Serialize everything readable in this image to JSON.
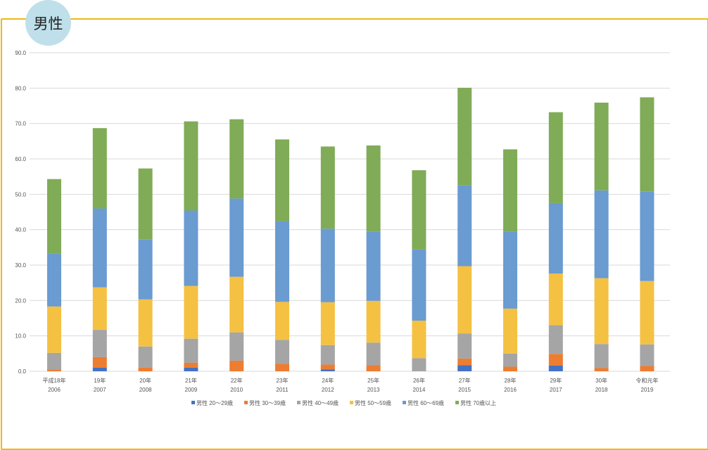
{
  "badge": {
    "label": "男性"
  },
  "chart_data": {
    "type": "bar",
    "stacked": true,
    "title": "",
    "xlabel": "",
    "ylabel": "",
    "ylim": [
      0,
      90
    ],
    "yticks": [
      "0.0",
      "10.0",
      "20.0",
      "30.0",
      "40.0",
      "50.0",
      "60.0",
      "70.0",
      "80.0",
      "90.0"
    ],
    "grid": true,
    "legend_position": "bottom",
    "categories": [
      {
        "era": "平成18年",
        "year": "2006"
      },
      {
        "era": "19年",
        "year": "2007"
      },
      {
        "era": "20年",
        "year": "2008"
      },
      {
        "era": "21年",
        "year": "2009"
      },
      {
        "era": "22年",
        "year": "2010"
      },
      {
        "era": "23年",
        "year": "2011"
      },
      {
        "era": "24年",
        "year": "2012"
      },
      {
        "era": "25年",
        "year": "2013"
      },
      {
        "era": "26年",
        "year": "2014"
      },
      {
        "era": "27年",
        "year": "2015"
      },
      {
        "era": "28年",
        "year": "2016"
      },
      {
        "era": "29年",
        "year": "2017"
      },
      {
        "era": "30年",
        "year": "2018"
      },
      {
        "era": "令和元年",
        "year": "2019"
      }
    ],
    "series": [
      {
        "name": "男性 20～29歳",
        "color": "#4472c4",
        "values": [
          0,
          1.0,
          0,
          1.0,
          0,
          0,
          0.5,
          0,
          0,
          1.7,
          0,
          1.6,
          0,
          0
        ]
      },
      {
        "name": "男性 30～39歳",
        "color": "#ed7d31",
        "values": [
          0.4,
          3.0,
          1.0,
          1.4,
          3.0,
          2.1,
          1.4,
          1.7,
          0,
          1.9,
          1.3,
          3.3,
          0.9,
          1.5
        ]
      },
      {
        "name": "男性 40～49歳",
        "color": "#a5a5a5",
        "values": [
          4.8,
          7.7,
          6.0,
          6.8,
          8.0,
          6.8,
          5.5,
          6.4,
          3.7,
          7.1,
          3.7,
          8.1,
          6.8,
          6.1
        ]
      },
      {
        "name": "男性 50～59歳",
        "color": "#f5c142",
        "values": [
          13.1,
          12.0,
          13.3,
          14.9,
          15.7,
          10.7,
          12.1,
          11.8,
          10.6,
          19.0,
          12.7,
          14.6,
          18.6,
          17.9
        ]
      },
      {
        "name": "男性 60～69歳",
        "color": "#6a9bd1",
        "values": [
          14.9,
          22.3,
          16.9,
          21.3,
          22.1,
          22.8,
          20.8,
          19.6,
          20.1,
          22.9,
          21.8,
          19.9,
          24.8,
          25.2
        ]
      },
      {
        "name": "男性 70歳以上",
        "color": "#80ab57",
        "values": [
          21.1,
          22.7,
          20.1,
          25.2,
          22.4,
          23.1,
          23.2,
          24.3,
          22.4,
          27.5,
          23.2,
          25.7,
          24.8,
          26.7
        ]
      }
    ]
  }
}
